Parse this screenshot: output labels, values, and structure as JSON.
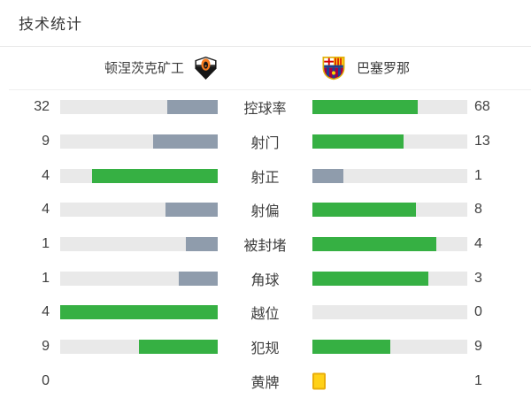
{
  "title": "技术统计",
  "colors": {
    "green": "#36b043",
    "slate": "#8f9cac",
    "track": "#e9e9e9",
    "card_fill": "#ffd118",
    "card_border": "#e9ae0b",
    "text": "#3e3e3e",
    "divider": "#e9e9e9"
  },
  "teams": {
    "home": {
      "name": "顿涅茨克矿工",
      "logo": "shakhtar-crest"
    },
    "away": {
      "name": "巴塞罗那",
      "logo": "barcelona-crest"
    }
  },
  "stats": {
    "rows": [
      {
        "label": "控球率",
        "kind": "bar",
        "home": {
          "value": "32",
          "pct": 32,
          "color": "slate"
        },
        "away": {
          "value": "68",
          "pct": 68,
          "color": "green"
        }
      },
      {
        "label": "射门",
        "kind": "bar",
        "home": {
          "value": "9",
          "pct": 40.9,
          "color": "slate"
        },
        "away": {
          "value": "13",
          "pct": 59.1,
          "color": "green"
        }
      },
      {
        "label": "射正",
        "kind": "bar",
        "home": {
          "value": "4",
          "pct": 80,
          "color": "green"
        },
        "away": {
          "value": "1",
          "pct": 20,
          "color": "slate"
        }
      },
      {
        "label": "射偏",
        "kind": "bar",
        "home": {
          "value": "4",
          "pct": 33.3,
          "color": "slate"
        },
        "away": {
          "value": "8",
          "pct": 66.7,
          "color": "green"
        }
      },
      {
        "label": "被封堵",
        "kind": "bar",
        "home": {
          "value": "1",
          "pct": 20,
          "color": "slate"
        },
        "away": {
          "value": "4",
          "pct": 80,
          "color": "green"
        }
      },
      {
        "label": "角球",
        "kind": "bar",
        "home": {
          "value": "1",
          "pct": 25,
          "color": "slate"
        },
        "away": {
          "value": "3",
          "pct": 75,
          "color": "green"
        }
      },
      {
        "label": "越位",
        "kind": "bar",
        "home": {
          "value": "4",
          "pct": 100,
          "color": "green"
        },
        "away": {
          "value": "0",
          "pct": 0,
          "color": "green"
        }
      },
      {
        "label": "犯规",
        "kind": "bar",
        "home": {
          "value": "9",
          "pct": 50,
          "color": "green"
        },
        "away": {
          "value": "9",
          "pct": 50,
          "color": "green"
        }
      },
      {
        "label": "黄牌",
        "kind": "cards",
        "home": {
          "value": "0",
          "cards": 0
        },
        "away": {
          "value": "1",
          "cards": 1
        }
      }
    ]
  },
  "chart_data": {
    "type": "bar",
    "orientation": "horizontal-paired",
    "title": "技术统计",
    "categories": [
      "控球率",
      "射门",
      "射正",
      "射偏",
      "被封堵",
      "角球",
      "越位",
      "犯规",
      "黄牌"
    ],
    "series": [
      {
        "name": "顿涅茨克矿工",
        "values": [
          32,
          9,
          4,
          4,
          1,
          1,
          4,
          9,
          0
        ]
      },
      {
        "name": "巴塞罗那",
        "values": [
          68,
          13,
          1,
          8,
          4,
          3,
          0,
          9,
          1
        ]
      }
    ],
    "legend_position": "top",
    "grid": false,
    "notes": "每行左右两条条形按两队数值占比填充；数值较高(或持平)一方为绿色，较低一方为蓝灰色；黄牌行以黄牌图标表示数量"
  }
}
